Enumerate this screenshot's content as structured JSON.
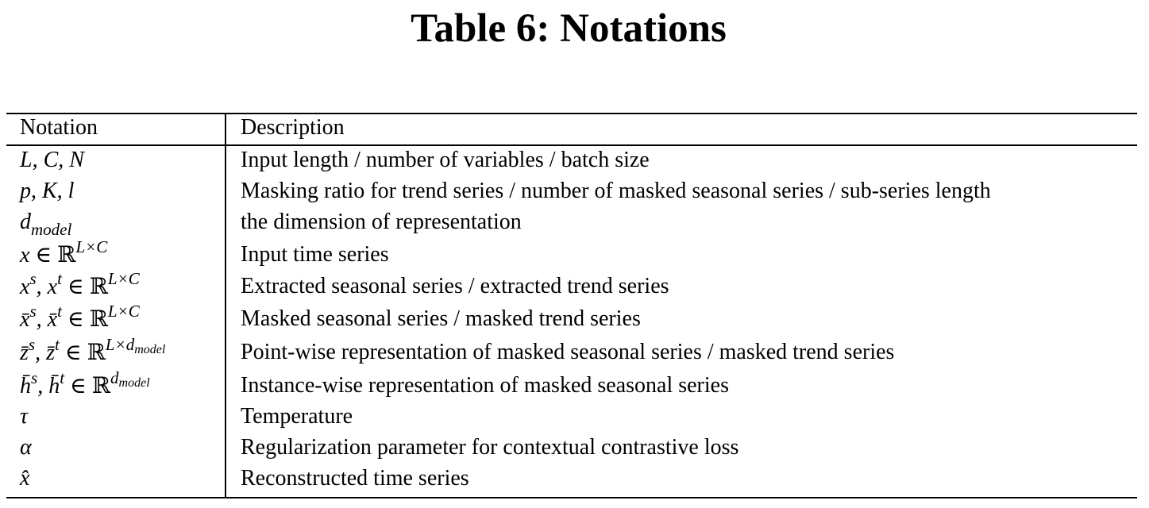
{
  "title": "Table 6: Notations",
  "headers": {
    "notation": "Notation",
    "description": "Description"
  },
  "rows": [
    {
      "notation": "L, C, N",
      "description": "Input length / number of variables / batch size"
    },
    {
      "notation": "p, K, l",
      "description": "Masking ratio for trend series / number of masked seasonal series / sub-series length"
    },
    {
      "notation": "d_model",
      "description": "the dimension of representation"
    },
    {
      "notation": "x ∈ ℝ^{L×C}",
      "description": "Input time series"
    },
    {
      "notation": "x^s, x^t ∈ ℝ^{L×C}",
      "description": "Extracted seasonal series / extracted trend series"
    },
    {
      "notation": "x̄^s, x̄^t ∈ ℝ^{L×C}",
      "description": "Masked seasonal series / masked trend series"
    },
    {
      "notation": "z̄^s, z̄^t ∈ ℝ^{L×d_model}",
      "description": "Point-wise representation of masked seasonal series / masked trend series"
    },
    {
      "notation": "h̄^s, h̄^t ∈ ℝ^{d_model}",
      "description": "Instance-wise representation of masked seasonal series"
    },
    {
      "notation": "τ",
      "description": "Temperature"
    },
    {
      "notation": "α",
      "description": "Regularization parameter for contextual contrastive loss"
    },
    {
      "notation": "x̂",
      "description": "Reconstructed time series"
    }
  ]
}
